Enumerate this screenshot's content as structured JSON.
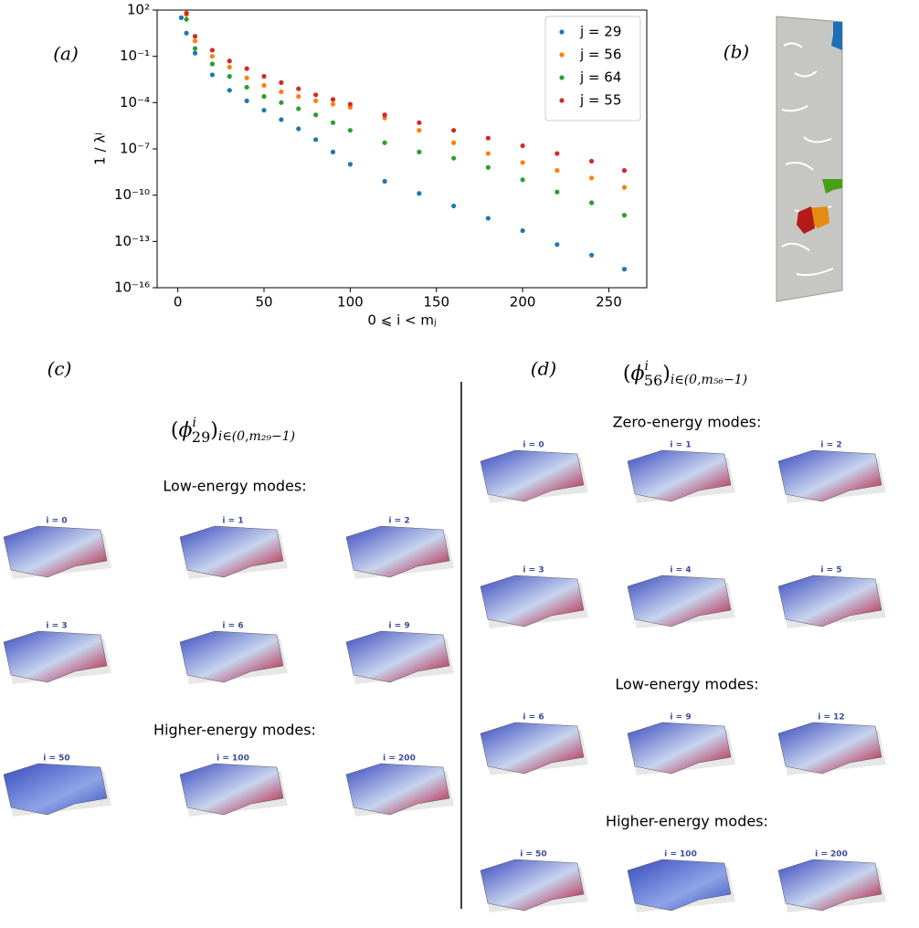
{
  "chart_data": {
    "type": "scatter",
    "log_y": true,
    "xlabel": "0 ⩽ i < mⱼ",
    "ylabel": "1 / λʲ",
    "x": [
      2,
      5,
      10,
      20,
      30,
      40,
      50,
      60,
      70,
      80,
      90,
      100,
      120,
      140,
      160,
      180,
      200,
      220,
      240,
      259
    ],
    "series": [
      {
        "name": "j = 29",
        "color": "#1f77b4",
        "values": [
          32,
          3.2,
          0.16,
          0.0063,
          0.00063,
          0.00013,
          3.2e-05,
          7.9e-06,
          2e-06,
          4e-07,
          6.3e-08,
          1e-08,
          7.9e-10,
          1.3e-10,
          2e-11,
          3.2e-12,
          5e-13,
          6.3e-14,
          1.3e-14,
          1.6e-15
        ]
      },
      {
        "name": "j = 56",
        "color": "#ff7f0e",
        "values": [
          null,
          50,
          1,
          0.1,
          0.02,
          0.004,
          0.0013,
          0.0005,
          0.00025,
          0.00013,
          7.9e-05,
          5e-05,
          1e-05,
          1.6e-06,
          2.5e-07,
          5e-08,
          1.3e-08,
          4e-09,
          1.3e-09,
          3.2e-10
        ]
      },
      {
        "name": "j = 64",
        "color": "#2ca02c",
        "values": [
          null,
          25,
          0.32,
          0.032,
          0.005,
          0.001,
          0.00025,
          0.0001,
          4e-05,
          1.6e-05,
          5e-06,
          1.6e-06,
          2.5e-07,
          6.3e-08,
          2.5e-08,
          6.3e-09,
          1e-09,
          1.6e-10,
          3.2e-11,
          5e-12
        ]
      },
      {
        "name": "j = 55",
        "color": "#d62728",
        "values": [
          null,
          63,
          2,
          0.25,
          0.05,
          0.016,
          0.005,
          0.002,
          0.00079,
          0.00032,
          0.00016,
          7.9e-05,
          1.6e-05,
          5e-06,
          1.6e-06,
          5e-07,
          1.6e-07,
          5e-08,
          1.6e-08,
          4e-09
        ]
      }
    ],
    "xlim": [
      -12,
      272
    ],
    "xticks": [
      0,
      50,
      100,
      150,
      200,
      250
    ],
    "ylim": [
      1e-16,
      100
    ],
    "yticks": [
      {
        "value": 100,
        "label": "10²"
      },
      {
        "value": 0.1,
        "label": "10⁻¹"
      },
      {
        "value": 0.0001,
        "label": "10⁻⁴"
      },
      {
        "value": 1e-07,
        "label": "10⁻⁷"
      },
      {
        "value": 1e-10,
        "label": "10⁻¹⁰"
      },
      {
        "value": 1e-13,
        "label": "10⁻¹³"
      },
      {
        "value": 1e-16,
        "label": "10⁻¹⁶"
      }
    ],
    "legend": "upper right"
  },
  "panels": {
    "a": "(a)",
    "b": "(b)",
    "c": "(c)",
    "d": "(d)"
  },
  "panel_c": {
    "formula": {
      "open": "(",
      "symbol": "ϕ",
      "sup": "i",
      "sub": "29",
      "close": ")",
      "index": "i∈(0,m₂₉−1)"
    },
    "sections": [
      {
        "title": "Low-energy modes:",
        "modes": [
          "i = 0",
          "i = 1",
          "i = 2",
          "i = 3",
          "i = 6",
          "i = 9"
        ]
      },
      {
        "title": "Higher-energy modes:",
        "modes": [
          "i = 50",
          "i = 100",
          "i = 200"
        ]
      }
    ]
  },
  "panel_d": {
    "formula": {
      "open": "(",
      "symbol": "ϕ",
      "sup": "i",
      "sub": "56",
      "close": ")",
      "index": "i∈(0,m₅₆−1)"
    },
    "sections": [
      {
        "title": "Zero-energy modes:",
        "modes": [
          "i = 0",
          "i = 1",
          "i = 2",
          "i = 3",
          "i = 4",
          "i = 5"
        ]
      },
      {
        "title": "Low-energy modes:",
        "modes": [
          "i = 6",
          "i = 9",
          "i = 12"
        ]
      },
      {
        "title": "Higher-energy modes:",
        "modes": [
          "i = 50",
          "i = 100",
          "i = 200"
        ]
      }
    ]
  }
}
